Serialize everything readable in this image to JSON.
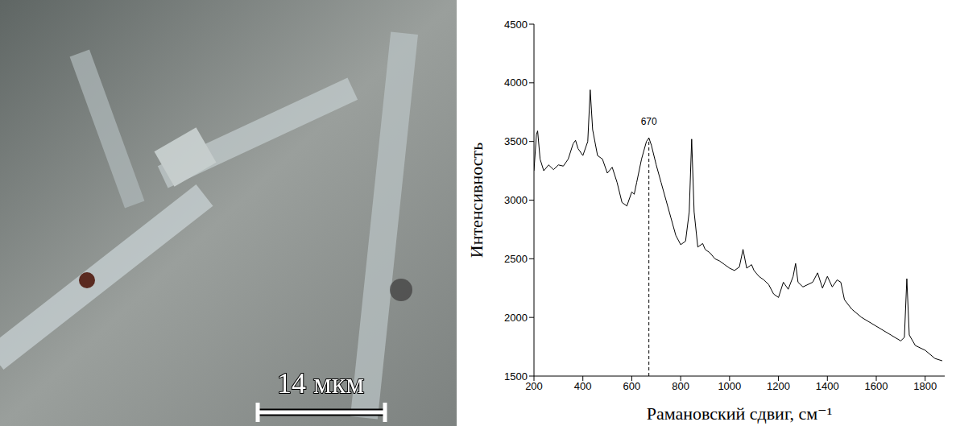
{
  "micrograph": {
    "scale_bar_label": "14 мкм"
  },
  "chart_data": {
    "type": "line",
    "x_label": "Рамановский сдвиг, см⁻¹",
    "y_label": "Интенсивность",
    "color": "#000000",
    "grid": false,
    "xlim": [
      200,
      1880
    ],
    "xticks": [
      200,
      400,
      600,
      800,
      1000,
      1200,
      1400,
      1600,
      1800
    ],
    "ylim": [
      1500,
      4500
    ],
    "yticks": [
      1500,
      2000,
      2500,
      3000,
      3500,
      4000,
      4500
    ],
    "annotations": [
      {
        "text": "670",
        "x": 670
      }
    ],
    "x": [
      200,
      210,
      215,
      225,
      240,
      260,
      280,
      300,
      320,
      340,
      360,
      370,
      380,
      400,
      420,
      430,
      440,
      460,
      480,
      500,
      520,
      540,
      560,
      580,
      600,
      610,
      620,
      640,
      660,
      670,
      680,
      700,
      720,
      740,
      760,
      780,
      800,
      820,
      835,
      845,
      855,
      870,
      890,
      900,
      920,
      940,
      960,
      980,
      1000,
      1020,
      1040,
      1055,
      1070,
      1090,
      1100,
      1120,
      1140,
      1160,
      1180,
      1200,
      1220,
      1240,
      1260,
      1270,
      1280,
      1300,
      1320,
      1340,
      1360,
      1380,
      1400,
      1420,
      1440,
      1455,
      1470,
      1500,
      1540,
      1580,
      1620,
      1660,
      1700,
      1715,
      1725,
      1735,
      1760,
      1800,
      1840,
      1870
    ],
    "values": [
      3250,
      3560,
      3590,
      3350,
      3250,
      3300,
      3260,
      3300,
      3290,
      3350,
      3480,
      3510,
      3440,
      3380,
      3500,
      3940,
      3600,
      3380,
      3350,
      3230,
      3280,
      3150,
      2980,
      2950,
      3070,
      3050,
      3150,
      3350,
      3500,
      3530,
      3470,
      3300,
      3150,
      3000,
      2850,
      2700,
      2620,
      2650,
      2900,
      3520,
      2900,
      2600,
      2630,
      2580,
      2550,
      2500,
      2480,
      2450,
      2420,
      2400,
      2430,
      2580,
      2420,
      2450,
      2400,
      2350,
      2320,
      2280,
      2200,
      2170,
      2300,
      2240,
      2350,
      2460,
      2300,
      2260,
      2280,
      2300,
      2380,
      2250,
      2350,
      2260,
      2320,
      2300,
      2150,
      2070,
      2000,
      1950,
      1900,
      1850,
      1800,
      1830,
      2330,
      1850,
      1760,
      1720,
      1650,
      1630
    ]
  }
}
